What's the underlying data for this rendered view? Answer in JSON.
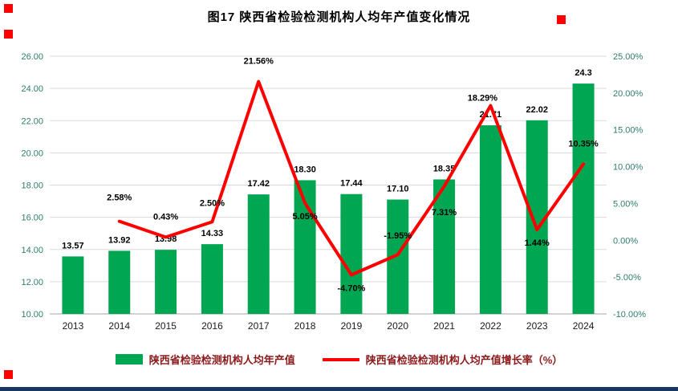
{
  "title": "图17 陕西省检验检测机构人均年产值变化情况",
  "chart_data": {
    "type": "bar",
    "combo": "bar+line",
    "title": "图17 陕西省检验检测机构人均年产值变化情况",
    "categories": [
      "2013",
      "2014",
      "2015",
      "2016",
      "2017",
      "2018",
      "2019",
      "2020",
      "2021",
      "2022",
      "2023",
      "2024"
    ],
    "series": [
      {
        "name": "陕西省检验检测机构人均年产值",
        "type": "bar",
        "axis": "left",
        "color": "#00A651",
        "values": [
          13.57,
          13.92,
          13.98,
          14.33,
          17.42,
          18.3,
          17.44,
          17.1,
          18.35,
          21.71,
          22.02,
          24.3
        ],
        "value_labels": [
          "13.57",
          "13.92",
          "13.98",
          "14.33",
          "17.42",
          "18.30",
          "17.44",
          "17.10",
          "18.35",
          "21.71",
          "22.02",
          "24.3"
        ]
      },
      {
        "name": "陕西省检验检测机构人均产值增长率（%）",
        "type": "line",
        "axis": "right",
        "color": "#FF0000",
        "values": [
          null,
          2.58,
          0.43,
          2.5,
          21.56,
          5.05,
          -4.7,
          -1.95,
          7.31,
          18.29,
          1.44,
          10.35
        ],
        "value_labels": [
          null,
          "2.58%",
          "0.43%",
          "2.50%",
          "21.56%",
          "5.05%",
          "-4.70%",
          "-1.95%",
          "7.31%",
          "18.29%",
          "1.44%",
          "10.35%"
        ]
      }
    ],
    "left_axis": {
      "min": 10,
      "max": 26,
      "tick_values": [
        10,
        12,
        14,
        16,
        18,
        20,
        22,
        24,
        26
      ],
      "tick_labels": [
        "10.00",
        "12.00",
        "14.00",
        "16.00",
        "18.00",
        "20.00",
        "22.00",
        "24.00",
        "26.00"
      ]
    },
    "right_axis": {
      "min": -10,
      "max": 25,
      "tick_values": [
        -10,
        -5,
        0,
        5,
        10,
        15,
        20,
        25
      ],
      "tick_labels": [
        "-10.00%",
        "-5.00%",
        "0.00%",
        "5.00%",
        "10.00%",
        "15.00%",
        "20.00%",
        "25.00%"
      ]
    },
    "grid": true,
    "legend_position": "bottom",
    "layout_hints": {
      "pct_label_dx": [
        0,
        0,
        0,
        0,
        0,
        0,
        0,
        0,
        0,
        -10,
        0,
        0
      ],
      "pct_label_dy": [
        0,
        -26,
        -22,
        -20,
        -22,
        20,
        20,
        -20,
        36,
        -6,
        20,
        -22
      ],
      "bar_label_gap": 10
    }
  },
  "colors": {
    "bar": "#00A651",
    "line": "#FF0000",
    "axis_label": "#2D7D6B",
    "x_label": "#1a1a1a",
    "grid": "#D9D9D9",
    "baseline": "#A6A6A6",
    "value_label": "#000000",
    "legend_text": "#8B1A1A",
    "footer_bar": "#17375E",
    "marker": "#FF0000"
  }
}
